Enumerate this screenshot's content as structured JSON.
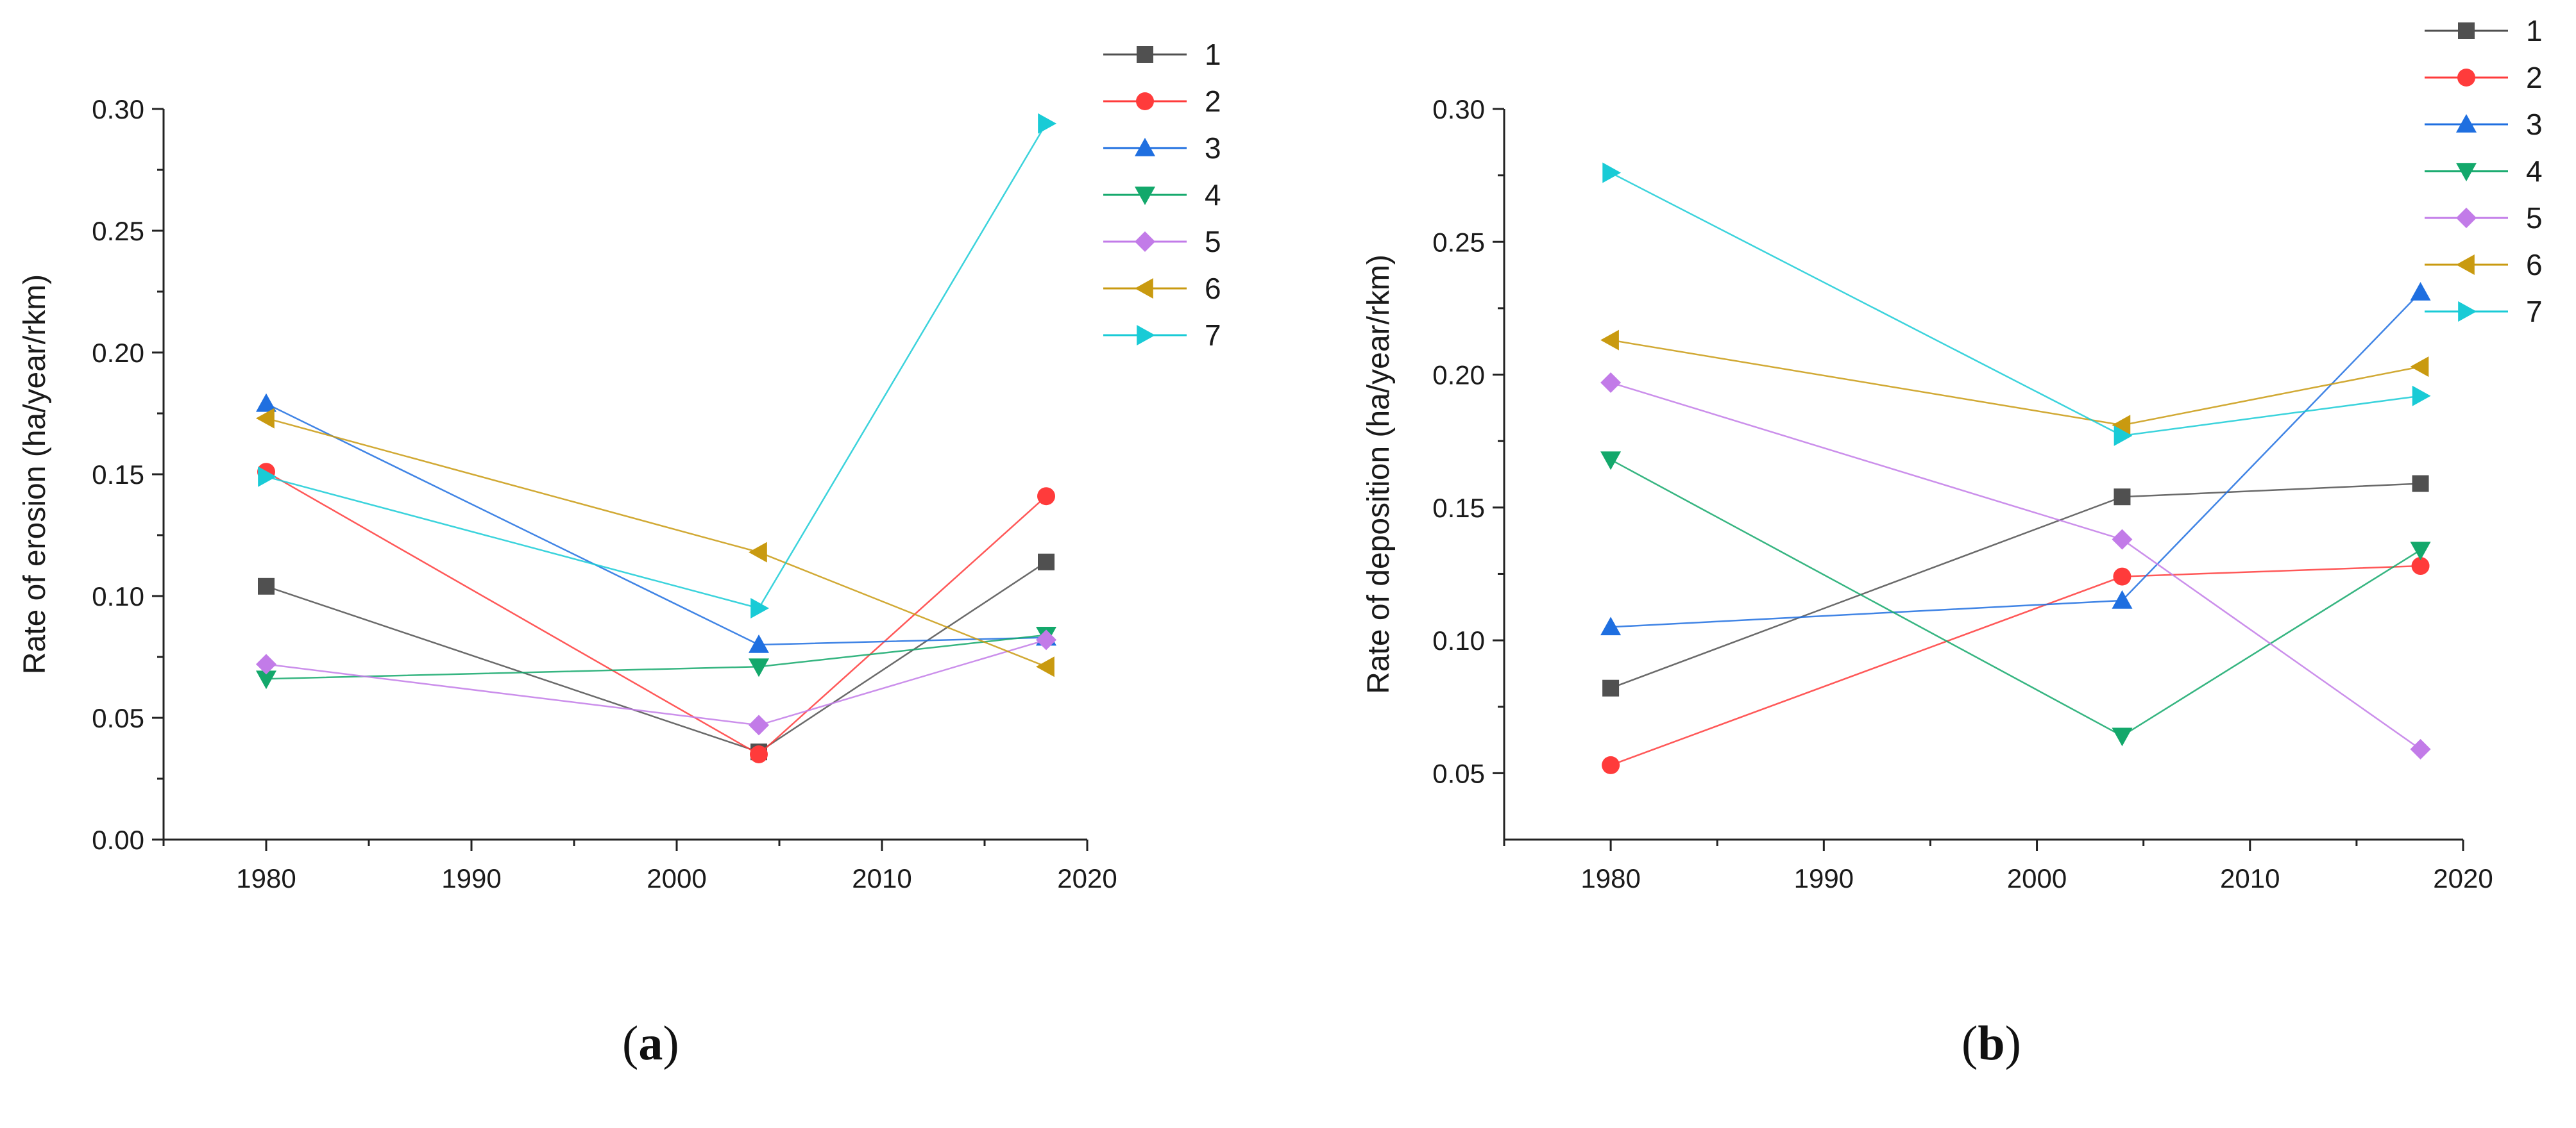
{
  "colors": {
    "1": "#505050",
    "2": "#ff3b3b",
    "3": "#1f6fe0",
    "4": "#13a86b",
    "5": "#c27be8",
    "6": "#c99a10",
    "7": "#19cbd6"
  },
  "chart_data": [
    {
      "type": "line",
      "panel_label": "a",
      "title": "",
      "xlabel": "",
      "ylabel": "Rate of erosion (ha/year/rkm)",
      "x": [
        1980,
        2004,
        2018
      ],
      "xlim": [
        1975,
        2020
      ],
      "ylim": [
        0,
        0.3
      ],
      "xticks": [
        "1980",
        "1990",
        "2000",
        "2010",
        "2020"
      ],
      "yticks": [
        "0.00",
        "0.05",
        "0.10",
        "0.15",
        "0.20",
        "0.25",
        "0.30"
      ],
      "legend_position": "top-right",
      "series": [
        {
          "name": "1",
          "marker": "square",
          "values": [
            0.104,
            0.036,
            0.114
          ]
        },
        {
          "name": "2",
          "marker": "circle",
          "values": [
            0.151,
            0.035,
            0.141
          ]
        },
        {
          "name": "3",
          "marker": "triangle-up",
          "values": [
            0.179,
            0.08,
            0.083
          ]
        },
        {
          "name": "4",
          "marker": "triangle-down",
          "values": [
            0.066,
            0.071,
            0.084
          ]
        },
        {
          "name": "5",
          "marker": "diamond",
          "values": [
            0.072,
            0.047,
            0.082
          ]
        },
        {
          "name": "6",
          "marker": "triangle-left",
          "values": [
            0.173,
            0.118,
            0.071
          ]
        },
        {
          "name": "7",
          "marker": "triangle-right",
          "values": [
            0.149,
            0.095,
            0.294
          ]
        }
      ]
    },
    {
      "type": "line",
      "panel_label": "b",
      "title": "",
      "xlabel": "",
      "ylabel": "Rate of deposition  (ha/year/rkm)",
      "x": [
        1980,
        2004,
        2018
      ],
      "xlim": [
        1975,
        2020
      ],
      "ylim": [
        0.025,
        0.3
      ],
      "xticks": [
        "1980",
        "1990",
        "2000",
        "2010",
        "2020"
      ],
      "yticks": [
        "0.05",
        "0.10",
        "0.15",
        "0.20",
        "0.25",
        "0.30"
      ],
      "legend_position": "top-right",
      "series": [
        {
          "name": "1",
          "marker": "square",
          "values": [
            0.082,
            0.154,
            0.159
          ]
        },
        {
          "name": "2",
          "marker": "circle",
          "values": [
            0.053,
            0.124,
            0.128
          ]
        },
        {
          "name": "3",
          "marker": "triangle-up",
          "values": [
            0.105,
            0.115,
            0.231
          ]
        },
        {
          "name": "4",
          "marker": "triangle-down",
          "values": [
            0.168,
            0.064,
            0.134
          ]
        },
        {
          "name": "5",
          "marker": "diamond",
          "values": [
            0.197,
            0.138,
            0.059
          ]
        },
        {
          "name": "6",
          "marker": "triangle-left",
          "values": [
            0.213,
            0.181,
            0.203
          ]
        },
        {
          "name": "7",
          "marker": "triangle-right",
          "values": [
            0.276,
            0.177,
            0.192
          ]
        }
      ]
    }
  ]
}
